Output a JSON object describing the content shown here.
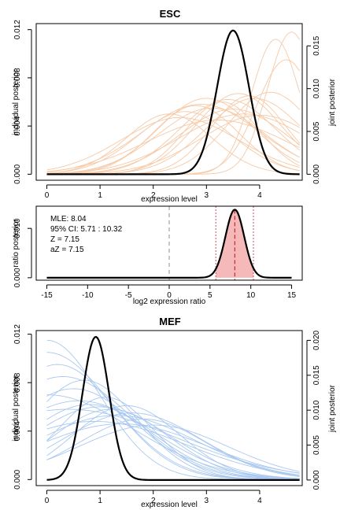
{
  "chart_data": [
    {
      "type": "line",
      "title": "ESC",
      "xlabel": "expression level",
      "ylabel": "individual posterior",
      "ylabel_right": "joint posterior",
      "xlim": [
        -0.2,
        4.8
      ],
      "ylim": [
        -0.0005,
        0.0125
      ],
      "ylim_right": [
        -0.0007,
        0.0176
      ],
      "xticks": [
        0,
        1,
        2,
        3,
        4
      ],
      "xtick_labels": [
        "0",
        "1",
        "2",
        "3",
        "4"
      ],
      "yticks": [
        0.0,
        0.004,
        0.008,
        0.012
      ],
      "ytick_labels": [
        "0.000",
        "0.004",
        "0.008",
        "0.012"
      ],
      "yticks_right": [
        0.0,
        0.005,
        0.01,
        0.015
      ],
      "ytick_labels_right": [
        "0.000",
        "0.005",
        "0.010",
        "0.015"
      ],
      "individual_color": "#f6c9a6",
      "joint_color": "#000000",
      "individual_series": [
        {
          "mu": 3.4,
          "sd": 0.9,
          "peak": 0.0062
        },
        {
          "mu": 3.1,
          "sd": 1.0,
          "peak": 0.0055
        },
        {
          "mu": 3.6,
          "sd": 0.8,
          "peak": 0.0067
        },
        {
          "mu": 2.6,
          "sd": 0.9,
          "peak": 0.0052
        },
        {
          "mu": 3.9,
          "sd": 0.9,
          "peak": 0.0063
        },
        {
          "mu": 2.9,
          "sd": 1.1,
          "peak": 0.0058
        },
        {
          "mu": 3.3,
          "sd": 0.7,
          "peak": 0.006
        },
        {
          "mu": 2.3,
          "sd": 0.8,
          "peak": 0.005
        },
        {
          "mu": 4.2,
          "sd": 0.8,
          "peak": 0.0068
        },
        {
          "mu": 3.7,
          "sd": 1.2,
          "peak": 0.005
        },
        {
          "mu": 2.8,
          "sd": 0.8,
          "peak": 0.0057
        },
        {
          "mu": 3.5,
          "sd": 1.0,
          "peak": 0.0054
        },
        {
          "mu": 4.0,
          "sd": 1.1,
          "peak": 0.0049
        },
        {
          "mu": 3.0,
          "sd": 0.9,
          "peak": 0.0063
        },
        {
          "mu": 4.6,
          "sd": 0.45,
          "peak": 0.0118
        },
        {
          "mu": 4.5,
          "sd": 0.55,
          "peak": 0.0095
        },
        {
          "mu": 4.3,
          "sd": 0.45,
          "peak": 0.0112
        },
        {
          "mu": 3.2,
          "sd": 1.3,
          "peak": 0.0045
        },
        {
          "mu": 2.5,
          "sd": 1.1,
          "peak": 0.0047
        },
        {
          "mu": 3.8,
          "sd": 0.7,
          "peak": 0.0065
        }
      ],
      "joint": {
        "mu": 3.5,
        "sd": 0.3,
        "peak": 0.0168
      }
    },
    {
      "type": "area",
      "xlabel": "log2 expression ratio",
      "ylabel": "ratio posterior",
      "xlim": [
        -16.3,
        16.3
      ],
      "ylim": [
        -0.0005,
        0.0145
      ],
      "xticks": [
        -15,
        -10,
        -5,
        0,
        5,
        10,
        15
      ],
      "xtick_labels": [
        "-15",
        "-10",
        "-5",
        "0",
        "5",
        "10",
        "15"
      ],
      "yticks": [
        0.0,
        0.01
      ],
      "ytick_labels": [
        "0.000",
        "0.010"
      ],
      "curve": {
        "mu": 8.04,
        "sd": 1.15,
        "peak": 0.0138
      },
      "ci": [
        5.71,
        10.32
      ],
      "mle": 8.04,
      "fill_color": "#f6b9b9",
      "zero_line_color": "#bbbbbb",
      "ci_line_color": "#c73a55",
      "mle_line_color": "#c62828",
      "annotations": [
        "MLE: 8.04",
        "95% CI: 5.71 : 10.32",
        "Z = 7.15",
        "aZ = 7.15"
      ]
    },
    {
      "type": "line",
      "title": "MEF",
      "xlabel": "expression level",
      "ylabel": "individual posterior",
      "ylabel_right": "joint posterior",
      "xlim": [
        -0.2,
        4.8
      ],
      "ylim": [
        -0.0005,
        0.0123
      ],
      "ylim_right": [
        -0.0008,
        0.0214
      ],
      "xticks": [
        0,
        1,
        2,
        3,
        4
      ],
      "xtick_labels": [
        "0",
        "1",
        "2",
        "3",
        "4"
      ],
      "yticks": [
        0.0,
        0.004,
        0.008,
        0.012
      ],
      "ytick_labels": [
        "0.000",
        "0.004",
        "0.008",
        "0.012"
      ],
      "yticks_right": [
        0.0,
        0.005,
        0.01,
        0.015,
        0.02
      ],
      "ytick_labels_right": [
        "0.000",
        "0.005",
        "0.010",
        "0.015",
        "0.020"
      ],
      "individual_color": "#a9c8f0",
      "joint_color": "#000000",
      "individual_series": [
        {
          "mu": 0.0,
          "sd": 1.0,
          "peak": 0.0115
        },
        {
          "mu": 0.0,
          "sd": 1.2,
          "peak": 0.0105
        },
        {
          "mu": 0.2,
          "sd": 1.1,
          "peak": 0.0095
        },
        {
          "mu": 0.3,
          "sd": 1.3,
          "peak": 0.0085
        },
        {
          "mu": 0.5,
          "sd": 1.2,
          "peak": 0.0075
        },
        {
          "mu": 0.0,
          "sd": 1.6,
          "peak": 0.007
        },
        {
          "mu": 0.6,
          "sd": 1.4,
          "peak": 0.0065
        },
        {
          "mu": 0.8,
          "sd": 1.2,
          "peak": 0.0062
        },
        {
          "mu": 1.0,
          "sd": 1.3,
          "peak": 0.006
        },
        {
          "mu": 1.2,
          "sd": 1.1,
          "peak": 0.0058
        },
        {
          "mu": 1.5,
          "sd": 1.0,
          "peak": 0.0061
        },
        {
          "mu": 1.6,
          "sd": 1.3,
          "peak": 0.0055
        },
        {
          "mu": 1.8,
          "sd": 1.2,
          "peak": 0.005
        },
        {
          "mu": 1.3,
          "sd": 1.5,
          "peak": 0.0053
        },
        {
          "mu": 0.9,
          "sd": 1.7,
          "peak": 0.0048
        },
        {
          "mu": 2.0,
          "sd": 1.4,
          "peak": 0.0045
        },
        {
          "mu": 0.4,
          "sd": 2.0,
          "peak": 0.0058
        },
        {
          "mu": 1.1,
          "sd": 0.9,
          "peak": 0.0068
        },
        {
          "mu": 0.7,
          "sd": 1.0,
          "peak": 0.0082
        },
        {
          "mu": 1.4,
          "sd": 1.6,
          "peak": 0.0046
        }
      ],
      "joint": {
        "mu": 0.92,
        "sd": 0.25,
        "peak": 0.0205
      }
    }
  ]
}
